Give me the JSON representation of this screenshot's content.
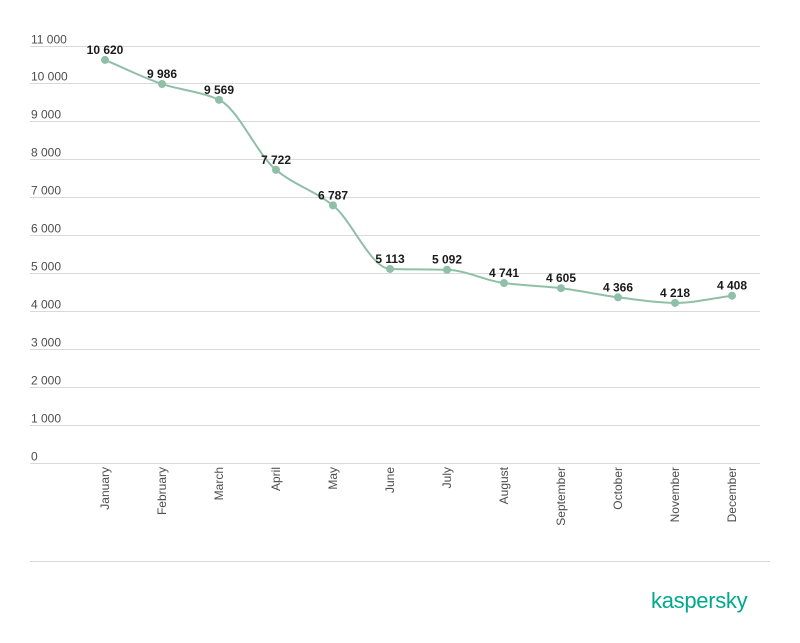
{
  "chart_data": {
    "type": "line",
    "categories": [
      "January",
      "February",
      "March",
      "April",
      "May",
      "June",
      "July",
      "August",
      "September",
      "October",
      "November",
      "December"
    ],
    "values": [
      10620,
      9986,
      9569,
      7722,
      6787,
      5113,
      5092,
      4741,
      4605,
      4366,
      4218,
      4408
    ],
    "value_labels": [
      "10 620",
      "9 986",
      "9 569",
      "7 722",
      "6 787",
      "5 113",
      "5 092",
      "4 741",
      "4 605",
      "4 366",
      "4 218",
      "4 408"
    ],
    "y_ticks": [
      0,
      1000,
      2000,
      3000,
      4000,
      5000,
      6000,
      7000,
      8000,
      9000,
      10000,
      11000
    ],
    "y_tick_labels": [
      "0",
      "1 000",
      "2 000",
      "3 000",
      "4 000",
      "5 000",
      "6 000",
      "7 000",
      "8 000",
      "9 000",
      "10 000",
      "11 000"
    ],
    "ylim": [
      0,
      11000
    ],
    "grid": true,
    "legend": "none",
    "title": "",
    "xlabel": "",
    "ylabel": "",
    "line_color": "#8fbfa7",
    "grid_color": "#d9d9d9"
  },
  "brand": {
    "logo_text": "kaspersky",
    "logo_color": "#00a88e"
  }
}
